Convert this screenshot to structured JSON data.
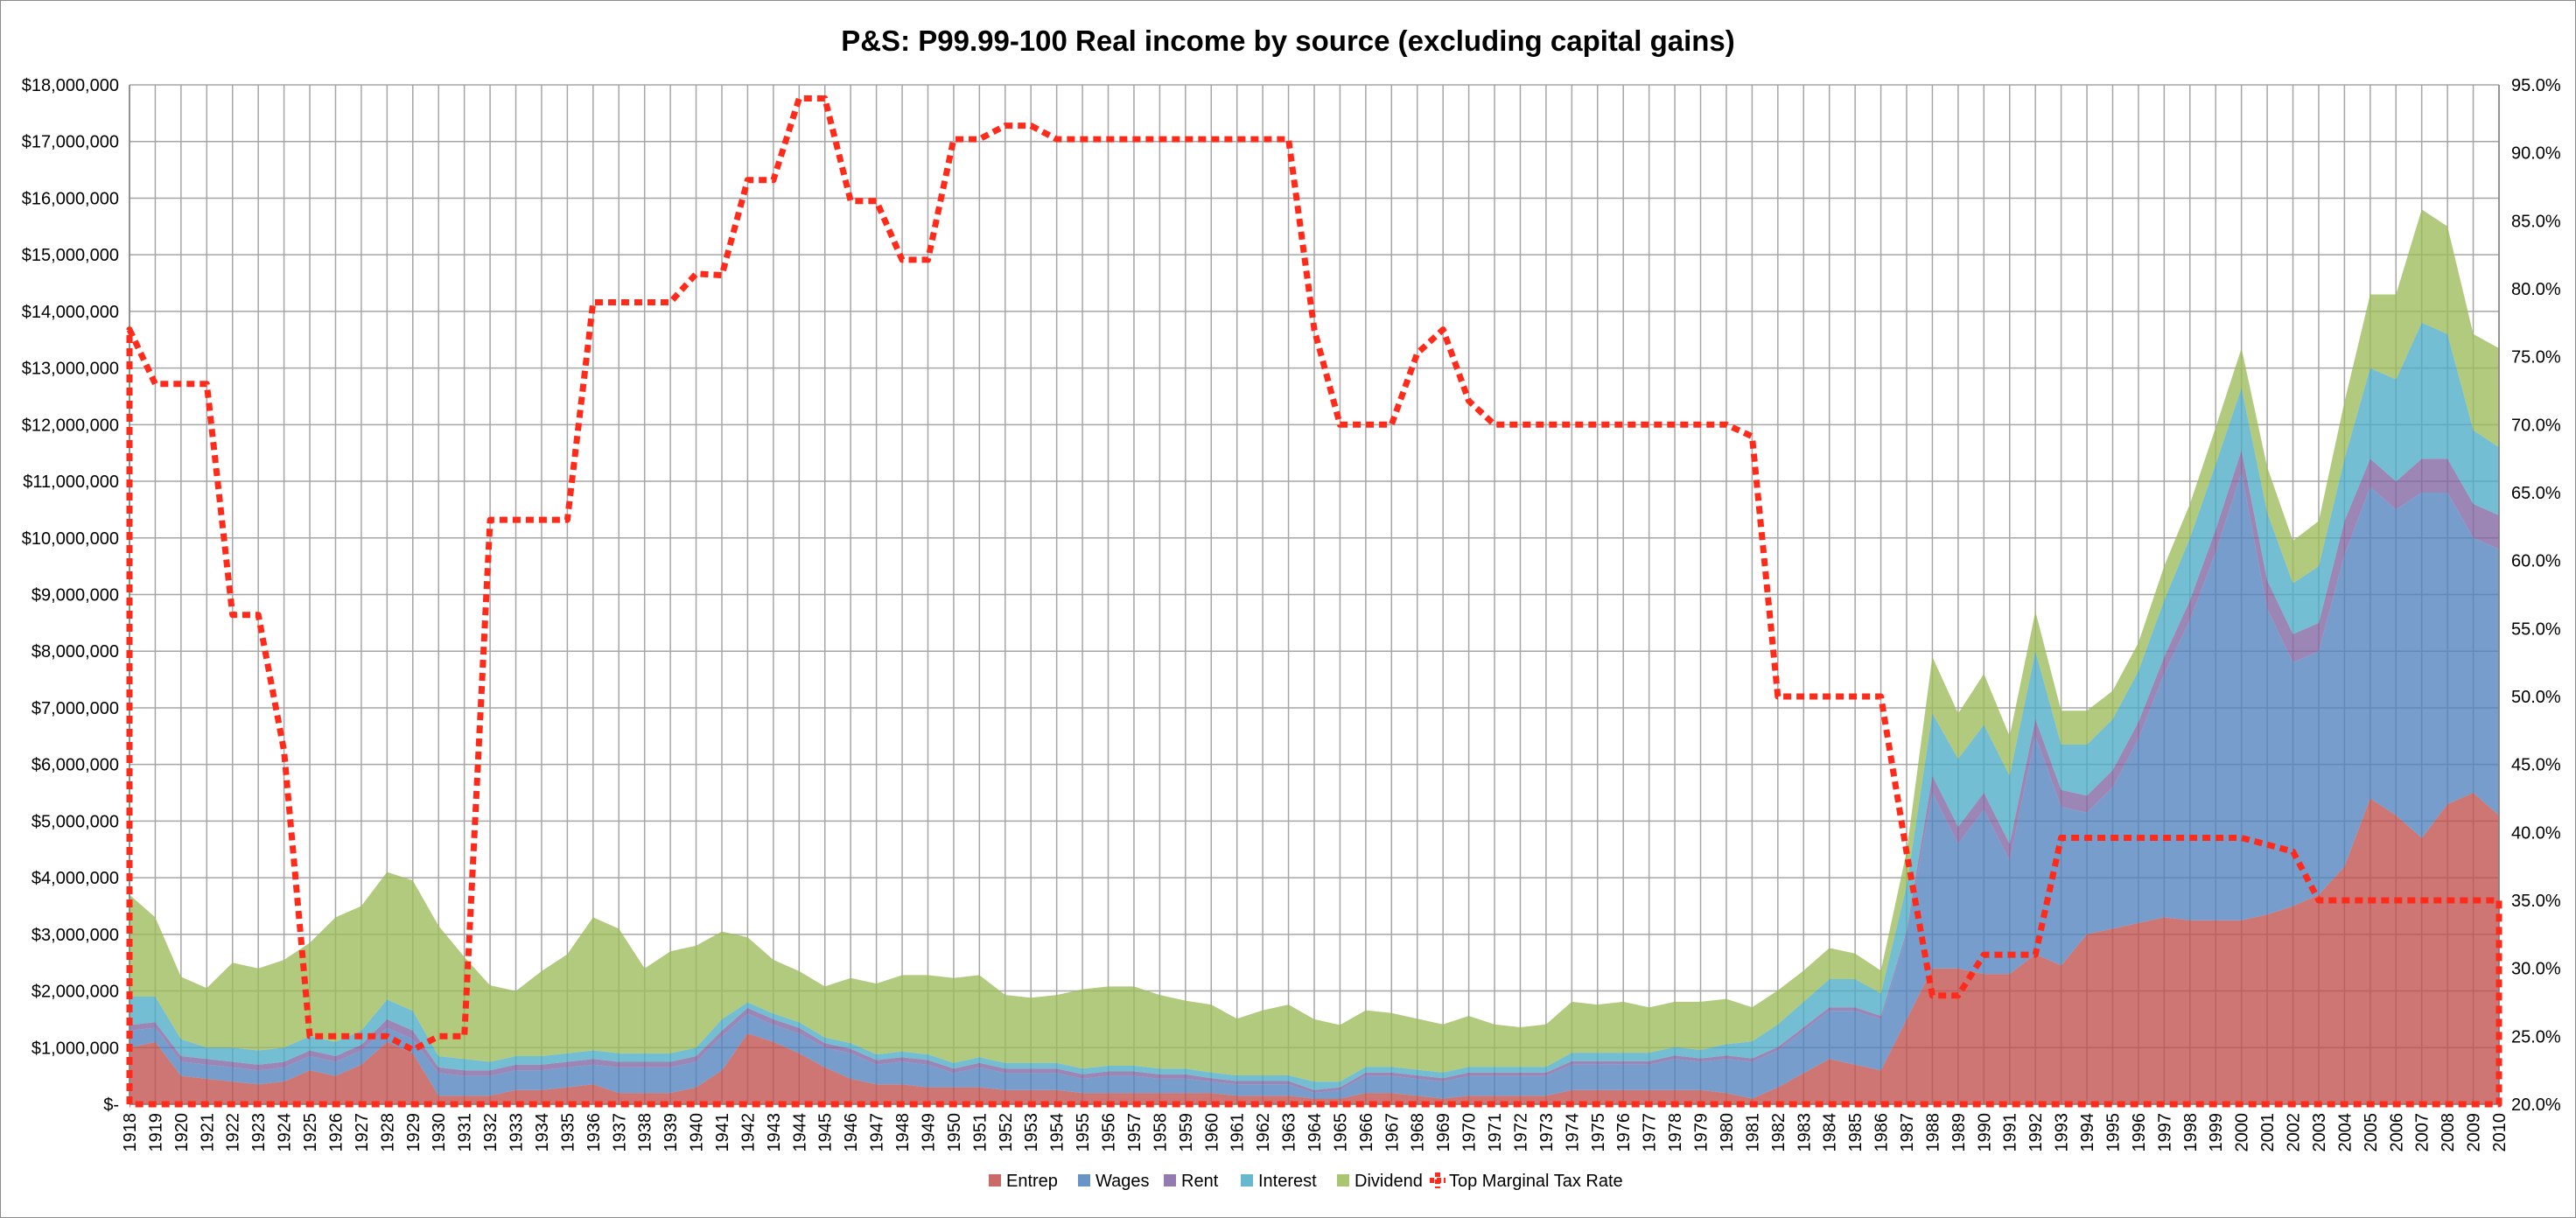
{
  "chart_data": {
    "type": "area",
    "title": "P&S: P99.99-100 Real income by source (excluding capital gains)",
    "x": [
      1918,
      1919,
      1920,
      1921,
      1922,
      1923,
      1924,
      1925,
      1926,
      1927,
      1928,
      1929,
      1930,
      1931,
      1932,
      1933,
      1934,
      1935,
      1936,
      1937,
      1938,
      1939,
      1940,
      1941,
      1942,
      1943,
      1944,
      1945,
      1946,
      1947,
      1948,
      1949,
      1950,
      1951,
      1952,
      1953,
      1954,
      1955,
      1956,
      1957,
      1958,
      1959,
      1960,
      1961,
      1962,
      1963,
      1964,
      1965,
      1966,
      1967,
      1968,
      1969,
      1970,
      1971,
      1972,
      1973,
      1974,
      1975,
      1976,
      1977,
      1978,
      1979,
      1980,
      1981,
      1982,
      1983,
      1984,
      1985,
      1986,
      1987,
      1988,
      1989,
      1990,
      1991,
      1992,
      1993,
      1994,
      1995,
      1996,
      1997,
      1998,
      1999,
      2000,
      2001,
      2002,
      2003,
      2004,
      2005,
      2006,
      2007,
      2008,
      2009,
      2010
    ],
    "y_left": {
      "min": 0,
      "max": 18000000,
      "step": 1000000,
      "tick_labels": [
        "$-",
        "$1,000,000",
        "$2,000,000",
        "$3,000,000",
        "$4,000,000",
        "$5,000,000",
        "$6,000,000",
        "$7,000,000",
        "$8,000,000",
        "$9,000,000",
        "$10,000,000",
        "$11,000,000",
        "$12,000,000",
        "$13,000,000",
        "$14,000,000",
        "$15,000,000",
        "$16,000,000",
        "$17,000,000",
        "$18,000,000"
      ]
    },
    "y_right": {
      "min": 20,
      "max": 95,
      "step": 5,
      "tick_labels": [
        "20.0%",
        "25.0%",
        "30.0%",
        "35.0%",
        "40.0%",
        "45.0%",
        "50.0%",
        "55.0%",
        "60.0%",
        "65.0%",
        "70.0%",
        "75.0%",
        "80.0%",
        "85.0%",
        "90.0%",
        "95.0%"
      ]
    },
    "grid": true,
    "legend_position": "bottom",
    "series": [
      {
        "name": "Entrep",
        "kind": "stacked-area",
        "color": "#c0504d",
        "values": [
          1000000,
          1100000,
          500000,
          450000,
          400000,
          350000,
          400000,
          600000,
          500000,
          700000,
          1100000,
          900000,
          150000,
          150000,
          150000,
          250000,
          250000,
          300000,
          350000,
          200000,
          200000,
          200000,
          300000,
          600000,
          1250000,
          1100000,
          900000,
          650000,
          450000,
          350000,
          350000,
          300000,
          300000,
          300000,
          250000,
          250000,
          250000,
          200000,
          200000,
          200000,
          200000,
          200000,
          200000,
          150000,
          150000,
          150000,
          100000,
          100000,
          200000,
          200000,
          150000,
          100000,
          150000,
          150000,
          150000,
          150000,
          250000,
          250000,
          250000,
          250000,
          250000,
          250000,
          200000,
          100000,
          300000,
          550000,
          800000,
          700000,
          600000,
          1500000,
          2400000,
          2400000,
          2300000,
          2300000,
          2650000,
          2450000,
          3000000,
          3100000,
          3200000,
          3300000,
          3250000,
          3250000,
          3250000,
          3350000,
          3500000,
          3700000,
          4200000,
          5400000,
          5100000,
          4700000,
          5300000,
          5500000,
          5100000
        ]
      },
      {
        "name": "Wages",
        "kind": "stacked-area",
        "color": "#4f81bd",
        "values": [
          300000,
          250000,
          250000,
          250000,
          250000,
          250000,
          250000,
          250000,
          250000,
          250000,
          250000,
          250000,
          400000,
          350000,
          350000,
          350000,
          350000,
          350000,
          350000,
          450000,
          450000,
          450000,
          450000,
          600000,
          350000,
          300000,
          350000,
          350000,
          450000,
          350000,
          400000,
          400000,
          250000,
          350000,
          300000,
          300000,
          300000,
          250000,
          300000,
          300000,
          250000,
          250000,
          200000,
          200000,
          200000,
          200000,
          100000,
          150000,
          300000,
          300000,
          300000,
          300000,
          350000,
          350000,
          350000,
          350000,
          450000,
          450000,
          450000,
          450000,
          550000,
          500000,
          600000,
          650000,
          650000,
          750000,
          850000,
          950000,
          900000,
          1500000,
          3100000,
          2200000,
          2900000,
          2000000,
          3850000,
          2800000,
          2150000,
          2500000,
          3250000,
          4300000,
          5300000,
          6500000,
          7900000,
          5400000,
          4300000,
          4300000,
          5500000,
          5500000,
          5400000,
          6100000,
          5500000,
          4500000,
          4700000
        ]
      },
      {
        "name": "Rent",
        "kind": "stacked-area",
        "color": "#8064a2",
        "values": [
          100000,
          100000,
          100000,
          100000,
          100000,
          100000,
          100000,
          100000,
          100000,
          100000,
          150000,
          150000,
          100000,
          100000,
          100000,
          100000,
          100000,
          100000,
          100000,
          100000,
          100000,
          100000,
          100000,
          100000,
          100000,
          100000,
          100000,
          80000,
          80000,
          80000,
          80000,
          80000,
          80000,
          80000,
          80000,
          80000,
          80000,
          80000,
          80000,
          80000,
          80000,
          80000,
          60000,
          60000,
          60000,
          60000,
          50000,
          50000,
          60000,
          60000,
          60000,
          60000,
          60000,
          60000,
          60000,
          60000,
          60000,
          60000,
          60000,
          60000,
          60000,
          60000,
          60000,
          60000,
          60000,
          60000,
          60000,
          60000,
          60000,
          60000,
          300000,
          300000,
          300000,
          300000,
          300000,
          300000,
          300000,
          300000,
          300000,
          300000,
          350000,
          400000,
          400000,
          500000,
          500000,
          500000,
          600000,
          500000,
          500000,
          600000,
          600000,
          600000,
          600000
        ]
      },
      {
        "name": "Interest",
        "kind": "stacked-area",
        "color": "#4bacc6",
        "values": [
          500000,
          450000,
          300000,
          200000,
          250000,
          250000,
          250000,
          250000,
          250000,
          250000,
          350000,
          350000,
          200000,
          200000,
          150000,
          150000,
          150000,
          150000,
          150000,
          150000,
          150000,
          150000,
          150000,
          200000,
          100000,
          100000,
          100000,
          100000,
          100000,
          100000,
          100000,
          100000,
          100000,
          100000,
          100000,
          100000,
          100000,
          100000,
          100000,
          100000,
          100000,
          100000,
          100000,
          100000,
          100000,
          100000,
          150000,
          100000,
          100000,
          100000,
          100000,
          100000,
          100000,
          100000,
          100000,
          100000,
          150000,
          150000,
          150000,
          150000,
          150000,
          150000,
          200000,
          300000,
          400000,
          450000,
          500000,
          500000,
          400000,
          800000,
          1100000,
          1200000,
          1200000,
          1200000,
          1200000,
          800000,
          900000,
          900000,
          900000,
          1000000,
          1100000,
          1150000,
          1100000,
          1200000,
          900000,
          1000000,
          1100000,
          1600000,
          1800000,
          2400000,
          2200000,
          1300000,
          1200000
        ]
      },
      {
        "name": "Dividend",
        "kind": "stacked-area",
        "color": "#9bbb59",
        "values": [
          1800000,
          1400000,
          1100000,
          1050000,
          1500000,
          1450000,
          1550000,
          1650000,
          2200000,
          2200000,
          2250000,
          2300000,
          2300000,
          1800000,
          1350000,
          1150000,
          1500000,
          1750000,
          2350000,
          2200000,
          1500000,
          1800000,
          1800000,
          1550000,
          1150000,
          950000,
          900000,
          900000,
          1150000,
          1250000,
          1350000,
          1400000,
          1500000,
          1450000,
          1200000,
          1150000,
          1200000,
          1400000,
          1400000,
          1400000,
          1300000,
          1200000,
          1200000,
          1000000,
          1150000,
          1250000,
          1100000,
          1000000,
          1000000,
          950000,
          900000,
          850000,
          900000,
          750000,
          700000,
          750000,
          900000,
          850000,
          900000,
          800000,
          800000,
          850000,
          800000,
          600000,
          600000,
          550000,
          550000,
          450000,
          400000,
          600000,
          1000000,
          800000,
          900000,
          700000,
          700000,
          600000,
          600000,
          500000,
          500000,
          600000,
          600000,
          650000,
          700000,
          800000,
          750000,
          800000,
          1000000,
          1300000,
          1500000,
          2000000,
          1900000,
          1700000,
          1750000
        ]
      },
      {
        "name": "Top Marginal Tax Rate",
        "kind": "dotted-line",
        "axis": "right",
        "color": "#ff2a1a",
        "values": [
          77,
          73,
          73,
          73,
          56,
          56,
          46,
          25,
          25,
          25,
          25,
          24,
          25,
          25,
          63,
          63,
          63,
          63,
          79,
          79,
          79,
          79,
          81.1,
          81,
          88,
          88,
          94,
          94,
          86.45,
          86.45,
          82.13,
          82.13,
          91,
          91,
          92,
          92,
          91,
          91,
          91,
          91,
          91,
          91,
          91,
          91,
          91,
          91,
          77,
          70,
          70,
          70,
          75.25,
          77,
          71.75,
          70,
          70,
          70,
          70,
          70,
          70,
          70,
          70,
          70,
          70,
          69.13,
          50,
          50,
          50,
          50,
          50,
          38.5,
          28,
          28,
          31,
          31,
          31,
          39.6,
          39.6,
          39.6,
          39.6,
          39.6,
          39.6,
          39.6,
          39.6,
          39.1,
          38.6,
          35,
          35,
          35,
          35,
          35,
          35,
          35,
          35
        ]
      }
    ]
  }
}
